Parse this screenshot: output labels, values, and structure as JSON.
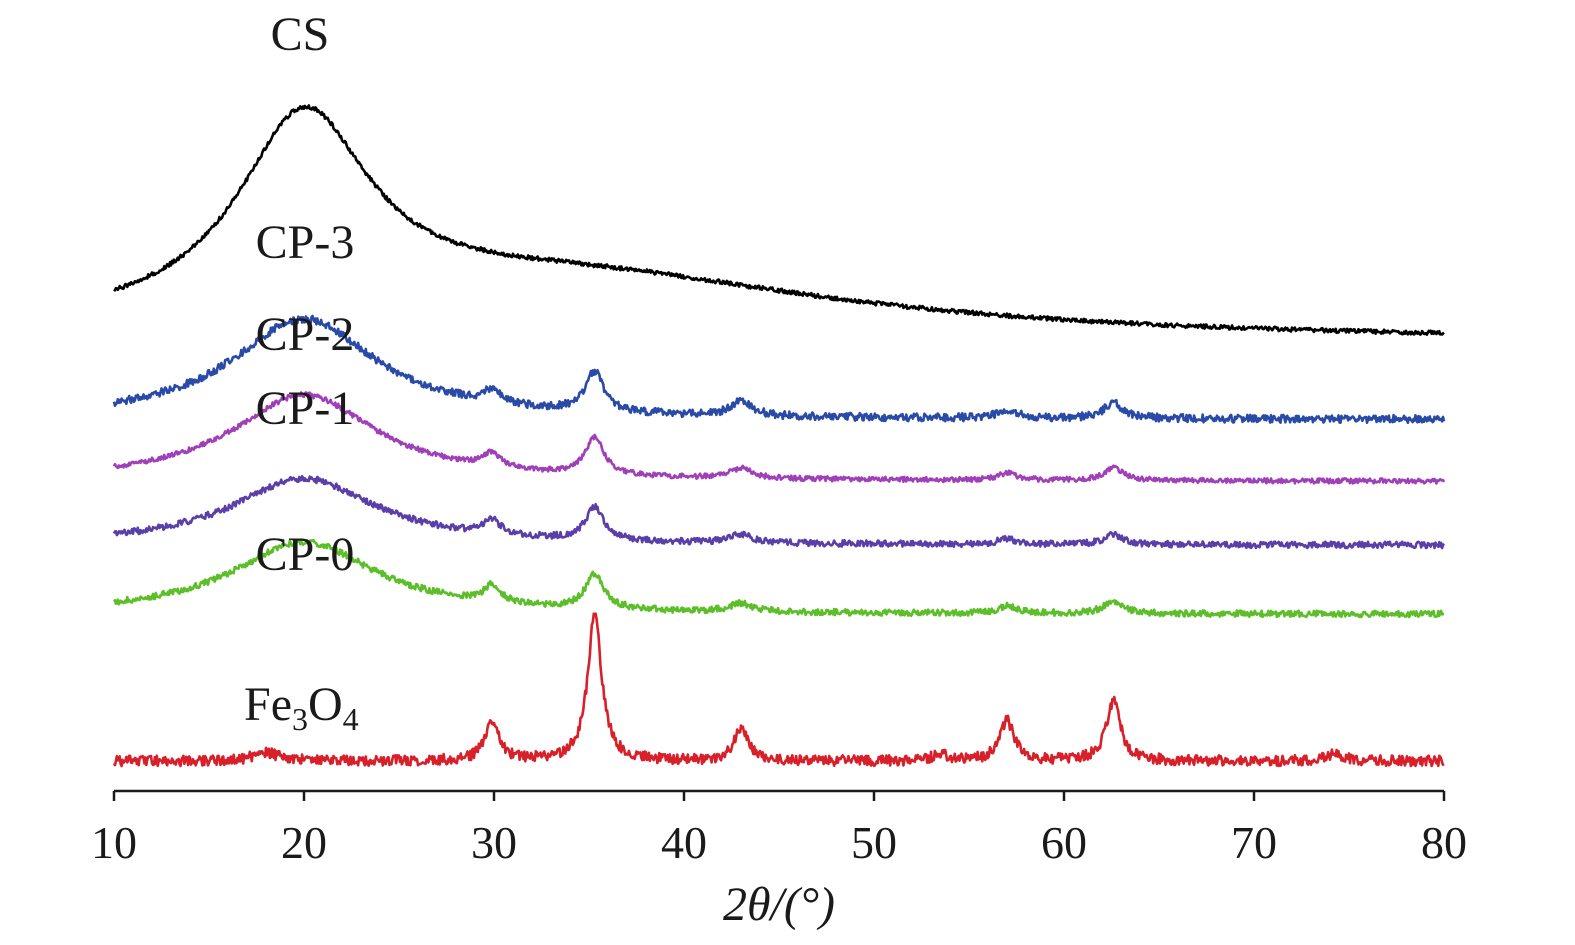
{
  "chart_data": {
    "type": "line",
    "title": "",
    "xlabel": "2θ/(°)",
    "ylabel": "",
    "xlim": [
      10,
      80
    ],
    "x_ticks": [
      "10",
      "20",
      "30",
      "40",
      "50",
      "60",
      "70",
      "80"
    ],
    "y_ticks": [],
    "grid": false,
    "legend": "inline labels",
    "series": [
      {
        "name": "CS",
        "label": "CS",
        "color": "#000000",
        "baseline": 0.0,
        "slope": 0.0,
        "noise": 0.3,
        "tail": {
          "start": 10,
          "end": 80,
          "startLevel": 0.0,
          "endLevel": 0.0
        },
        "peaks": [
          {
            "center": 20.0,
            "height": 13.8,
            "width": 4.2
          },
          {
            "center": 34.0,
            "height": 4.5,
            "width": 18.0
          }
        ],
        "offset": 0.0
      },
      {
        "name": "CP-3",
        "label": "CP-3",
        "color": "#2a4aa8",
        "noise": 0.55,
        "peaks": [
          {
            "center": 20.0,
            "height": 7.1,
            "width": 4.6
          },
          {
            "center": 29.9,
            "height": 0.9,
            "width": 0.55
          },
          {
            "center": 35.3,
            "height": 2.8,
            "width": 0.6
          },
          {
            "center": 43.0,
            "height": 1.0,
            "width": 0.7
          },
          {
            "center": 57.0,
            "height": 0.6,
            "width": 0.6
          },
          {
            "center": 62.6,
            "height": 1.1,
            "width": 0.6
          }
        ],
        "offset": 0.0
      },
      {
        "name": "CP-2",
        "label": "CP-2",
        "color": "#a040b8",
        "noise": 0.35,
        "peaks": [
          {
            "center": 20.0,
            "height": 6.1,
            "width": 4.6
          },
          {
            "center": 29.9,
            "height": 1.0,
            "width": 0.55
          },
          {
            "center": 35.3,
            "height": 2.6,
            "width": 0.6
          },
          {
            "center": 43.0,
            "height": 0.7,
            "width": 0.7
          },
          {
            "center": 57.0,
            "height": 0.5,
            "width": 0.6
          },
          {
            "center": 62.6,
            "height": 0.9,
            "width": 0.6
          }
        ],
        "offset": 0.0
      },
      {
        "name": "CP-1",
        "label": "CP-1",
        "color": "#5a3fa8",
        "noise": 0.45,
        "peaks": [
          {
            "center": 20.0,
            "height": 4.7,
            "width": 4.6
          },
          {
            "center": 29.9,
            "height": 1.0,
            "width": 0.55
          },
          {
            "center": 35.3,
            "height": 2.3,
            "width": 0.6
          },
          {
            "center": 43.0,
            "height": 0.6,
            "width": 0.7
          },
          {
            "center": 57.0,
            "height": 0.4,
            "width": 0.6
          },
          {
            "center": 62.6,
            "height": 0.7,
            "width": 0.6
          }
        ],
        "offset": 0.0
      },
      {
        "name": "CP-0",
        "label": "CP-0",
        "color": "#5cbf2a",
        "noise": 0.45,
        "peaks": [
          {
            "center": 20.0,
            "height": 5.1,
            "width": 4.6
          },
          {
            "center": 29.9,
            "height": 1.2,
            "width": 0.55
          },
          {
            "center": 35.3,
            "height": 2.4,
            "width": 0.6
          },
          {
            "center": 43.0,
            "height": 0.6,
            "width": 0.7
          },
          {
            "center": 57.0,
            "height": 0.5,
            "width": 0.6
          },
          {
            "center": 62.6,
            "height": 0.9,
            "width": 0.6
          }
        ],
        "offset": 0.0
      },
      {
        "name": "Fe3O4",
        "label": "Fe",
        "label_sub1": "3",
        "label_mid": "O",
        "label_sub2": "4",
        "color": "#d8202a",
        "noise": 0.75,
        "peaks": [
          {
            "center": 18.0,
            "height": 0.6,
            "width": 0.8
          },
          {
            "center": 29.9,
            "height": 2.7,
            "width": 0.45
          },
          {
            "center": 35.3,
            "height": 10.2,
            "width": 0.45
          },
          {
            "center": 43.0,
            "height": 2.2,
            "width": 0.45
          },
          {
            "center": 53.5,
            "height": 0.5,
            "width": 0.5
          },
          {
            "center": 57.0,
            "height": 2.8,
            "width": 0.45
          },
          {
            "center": 62.6,
            "height": 4.2,
            "width": 0.45
          },
          {
            "center": 74.3,
            "height": 0.5,
            "width": 0.6
          }
        ],
        "offset": 0.0
      }
    ]
  }
}
